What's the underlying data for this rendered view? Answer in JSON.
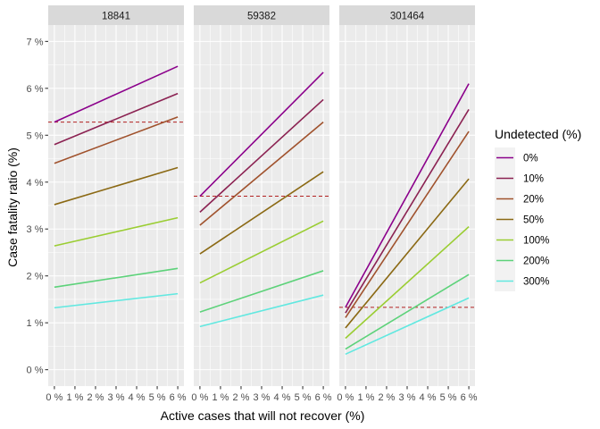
{
  "chart_data": {
    "type": "line",
    "xlabel": "Active cases that will not recover (%)",
    "ylabel": "Case fatality ratio (%)",
    "xlim": [
      0,
      6
    ],
    "ylim": [
      0,
      7
    ],
    "x_ticks": [
      0,
      1,
      2,
      3,
      4,
      5,
      6
    ],
    "x_tick_labels": [
      "0 %",
      "1 %",
      "2 %",
      "3 %",
      "4 %",
      "5 %",
      "6 %"
    ],
    "y_ticks": [
      0,
      1,
      2,
      3,
      4,
      5,
      6,
      7
    ],
    "y_tick_labels": [
      "0 %",
      "1 %",
      "2 %",
      "3 %",
      "4 %",
      "5 %",
      "6 %",
      "7 %"
    ],
    "grid": true,
    "legend": {
      "title": "Undetected (%)",
      "position": "right",
      "entries": [
        {
          "label": "0%",
          "color": "#8b008b"
        },
        {
          "label": "10%",
          "color": "#8b2252"
        },
        {
          "label": "20%",
          "color": "#a0522d"
        },
        {
          "label": "50%",
          "color": "#8b6914"
        },
        {
          "label": "100%",
          "color": "#9acd32"
        },
        {
          "label": "200%",
          "color": "#5dd27a"
        },
        {
          "label": "300%",
          "color": "#61e8e0"
        }
      ]
    },
    "panels": [
      {
        "title": "18841",
        "reference": 5.28,
        "series": [
          {
            "label": "0%",
            "x": [
              0,
              6
            ],
            "y": [
              5.28,
              6.47
            ]
          },
          {
            "label": "10%",
            "x": [
              0,
              6
            ],
            "y": [
              4.8,
              5.89
            ]
          },
          {
            "label": "20%",
            "x": [
              0,
              6
            ],
            "y": [
              4.4,
              5.39
            ]
          },
          {
            "label": "50%",
            "x": [
              0,
              6
            ],
            "y": [
              3.52,
              4.31
            ]
          },
          {
            "label": "100%",
            "x": [
              0,
              6
            ],
            "y": [
              2.64,
              3.24
            ]
          },
          {
            "label": "200%",
            "x": [
              0,
              6
            ],
            "y": [
              1.76,
              2.16
            ]
          },
          {
            "label": "300%",
            "x": [
              0,
              6
            ],
            "y": [
              1.32,
              1.62
            ]
          }
        ]
      },
      {
        "title": "59382",
        "reference": 3.7,
        "series": [
          {
            "label": "0%",
            "x": [
              0,
              6
            ],
            "y": [
              3.7,
              6.34
            ]
          },
          {
            "label": "10%",
            "x": [
              0,
              6
            ],
            "y": [
              3.36,
              5.76
            ]
          },
          {
            "label": "20%",
            "x": [
              0,
              6
            ],
            "y": [
              3.08,
              5.28
            ]
          },
          {
            "label": "50%",
            "x": [
              0,
              6
            ],
            "y": [
              2.47,
              4.22
            ]
          },
          {
            "label": "100%",
            "x": [
              0,
              6
            ],
            "y": [
              1.85,
              3.17
            ]
          },
          {
            "label": "200%",
            "x": [
              0,
              6
            ],
            "y": [
              1.23,
              2.11
            ]
          },
          {
            "label": "300%",
            "x": [
              0,
              6
            ],
            "y": [
              0.92,
              1.59
            ]
          }
        ]
      },
      {
        "title": "301464",
        "reference": 1.33,
        "series": [
          {
            "label": "0%",
            "x": [
              0,
              6
            ],
            "y": [
              1.33,
              6.1
            ]
          },
          {
            "label": "10%",
            "x": [
              0,
              6
            ],
            "y": [
              1.21,
              5.55
            ]
          },
          {
            "label": "20%",
            "x": [
              0,
              6
            ],
            "y": [
              1.11,
              5.08
            ]
          },
          {
            "label": "50%",
            "x": [
              0,
              6
            ],
            "y": [
              0.89,
              4.07
            ]
          },
          {
            "label": "100%",
            "x": [
              0,
              6
            ],
            "y": [
              0.67,
              3.05
            ]
          },
          {
            "label": "200%",
            "x": [
              0,
              6
            ],
            "y": [
              0.44,
              2.03
            ]
          },
          {
            "label": "300%",
            "x": [
              0,
              6
            ],
            "y": [
              0.33,
              1.53
            ]
          }
        ]
      }
    ]
  }
}
